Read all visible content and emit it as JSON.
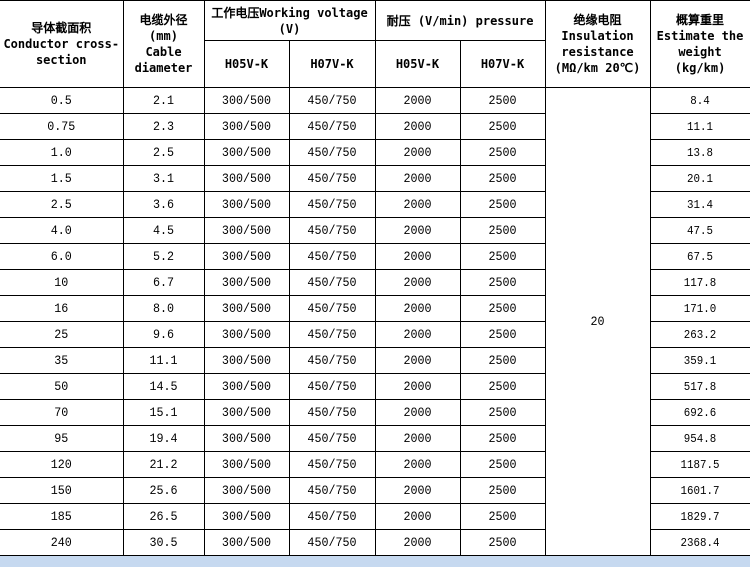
{
  "headers": {
    "conductor": {
      "cn": "导体截面积",
      "en": "Conductor cross-section"
    },
    "diameter": {
      "cn": "电缆外径",
      "unit": "(mm)",
      "en": "Cable diameter"
    },
    "working_voltage": "工作电压Working voltage (V)",
    "pressure": "耐压 (V/min) pressure",
    "insulation": {
      "cn": "绝缘电阻",
      "en": "Insulation resistance",
      "unit": "(MΩ/km 20℃)"
    },
    "weight": {
      "cn": "概算重里",
      "en": "Estimate the weight",
      "unit": "(kg/km)"
    },
    "sub": [
      "H05V-K",
      "H07V-K",
      "H05V-K",
      "H07V-K"
    ]
  },
  "insulation_value": "20",
  "rows": [
    [
      "0.5",
      "2.1",
      "300/500",
      "450/750",
      "2000",
      "2500",
      "8.4"
    ],
    [
      "0.75",
      "2.3",
      "300/500",
      "450/750",
      "2000",
      "2500",
      "11.1"
    ],
    [
      "1.0",
      "2.5",
      "300/500",
      "450/750",
      "2000",
      "2500",
      "13.8"
    ],
    [
      "1.5",
      "3.1",
      "300/500",
      "450/750",
      "2000",
      "2500",
      "20.1"
    ],
    [
      "2.5",
      "3.6",
      "300/500",
      "450/750",
      "2000",
      "2500",
      "31.4"
    ],
    [
      "4.0",
      "4.5",
      "300/500",
      "450/750",
      "2000",
      "2500",
      "47.5"
    ],
    [
      "6.0",
      "5.2",
      "300/500",
      "450/750",
      "2000",
      "2500",
      "67.5"
    ],
    [
      "10",
      "6.7",
      "300/500",
      "450/750",
      "2000",
      "2500",
      "117.8"
    ],
    [
      "16",
      "8.0",
      "300/500",
      "450/750",
      "2000",
      "2500",
      "171.0"
    ],
    [
      "25",
      "9.6",
      "300/500",
      "450/750",
      "2000",
      "2500",
      "263.2"
    ],
    [
      "35",
      "11.1",
      "300/500",
      "450/750",
      "2000",
      "2500",
      "359.1"
    ],
    [
      "50",
      "14.5",
      "300/500",
      "450/750",
      "2000",
      "2500",
      "517.8"
    ],
    [
      "70",
      "15.1",
      "300/500",
      "450/750",
      "2000",
      "2500",
      "692.6"
    ],
    [
      "95",
      "19.4",
      "300/500",
      "450/750",
      "2000",
      "2500",
      "954.8"
    ],
    [
      "120",
      "21.2",
      "300/500",
      "450/750",
      "2000",
      "2500",
      "1187.5"
    ],
    [
      "150",
      "25.6",
      "300/500",
      "450/750",
      "2000",
      "2500",
      "1601.7"
    ],
    [
      "185",
      "26.5",
      "300/500",
      "450/750",
      "2000",
      "2500",
      "1829.7"
    ],
    [
      "240",
      "30.5",
      "300/500",
      "450/750",
      "2000",
      "2500",
      "2368.4"
    ]
  ]
}
